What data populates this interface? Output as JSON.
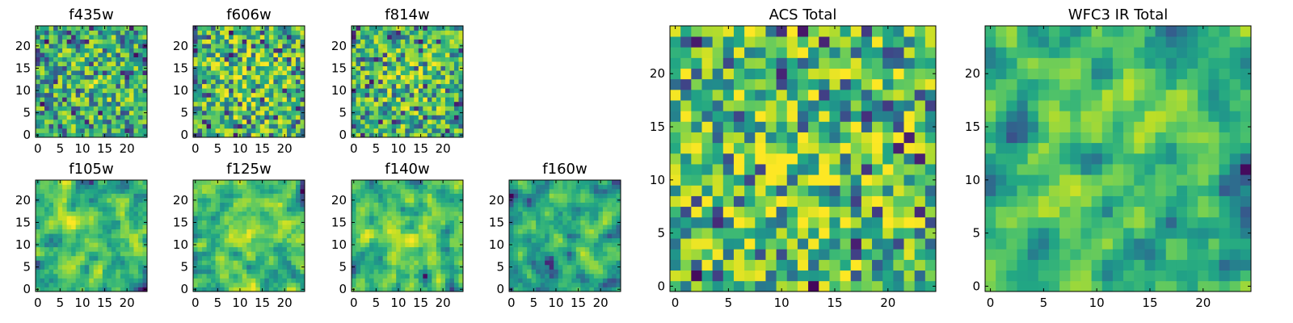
{
  "chart_data": [
    {
      "type": "heatmap",
      "title": "f435w",
      "xticks": [
        "0",
        "5",
        "10",
        "15",
        "20"
      ],
      "yticks": [
        "0",
        "5",
        "10",
        "15",
        "20"
      ],
      "xlim": [
        -0.5,
        24.5
      ],
      "ylim": [
        -0.5,
        24.5
      ],
      "colormap": "viridis",
      "seed": 11,
      "smooth": 0,
      "bias": 0.62
    },
    {
      "type": "heatmap",
      "title": "f606w",
      "xticks": [
        "0",
        "5",
        "10",
        "15",
        "20"
      ],
      "yticks": [
        "0",
        "5",
        "10",
        "15",
        "20"
      ],
      "xlim": [
        -0.5,
        24.5
      ],
      "ylim": [
        -0.5,
        24.5
      ],
      "colormap": "viridis",
      "seed": 23,
      "smooth": 0,
      "bias": 0.66
    },
    {
      "type": "heatmap",
      "title": "f814w",
      "xticks": [
        "0",
        "5",
        "10",
        "15",
        "20"
      ],
      "yticks": [
        "0",
        "5",
        "10",
        "15",
        "20"
      ],
      "xlim": [
        -0.5,
        24.5
      ],
      "ylim": [
        -0.5,
        24.5
      ],
      "colormap": "viridis",
      "seed": 37,
      "smooth": 0,
      "bias": 0.64
    },
    {
      "type": "heatmap",
      "title": "f105w",
      "xticks": [
        "0",
        "5",
        "10",
        "15",
        "20"
      ],
      "yticks": [
        "0",
        "5",
        "10",
        "15",
        "20"
      ],
      "xlim": [
        -0.5,
        24.5
      ],
      "ylim": [
        -0.5,
        24.5
      ],
      "colormap": "viridis",
      "seed": 41,
      "smooth": 1,
      "bias": 0.66
    },
    {
      "type": "heatmap",
      "title": "f125w",
      "xticks": [
        "0",
        "5",
        "10",
        "15",
        "20"
      ],
      "yticks": [
        "0",
        "5",
        "10",
        "15",
        "20"
      ],
      "xlim": [
        -0.5,
        24.5
      ],
      "ylim": [
        -0.5,
        24.5
      ],
      "colormap": "viridis",
      "seed": 53,
      "smooth": 1,
      "bias": 0.66
    },
    {
      "type": "heatmap",
      "title": "f140w",
      "xticks": [
        "0",
        "5",
        "10",
        "15",
        "20"
      ],
      "yticks": [
        "0",
        "5",
        "10",
        "15",
        "20"
      ],
      "xlim": [
        -0.5,
        24.5
      ],
      "ylim": [
        -0.5,
        24.5
      ],
      "colormap": "viridis",
      "seed": 67,
      "smooth": 1,
      "bias": 0.64
    },
    {
      "type": "heatmap",
      "title": "f160w",
      "xticks": [
        "0",
        "5",
        "10",
        "15",
        "20"
      ],
      "yticks": [
        "0",
        "5",
        "10",
        "15",
        "20"
      ],
      "xlim": [
        -0.5,
        24.5
      ],
      "ylim": [
        -0.5,
        24.5
      ],
      "colormap": "viridis",
      "seed": 79,
      "smooth": 1,
      "bias": 0.58
    },
    {
      "type": "heatmap",
      "title": "ACS Total",
      "xticks": [
        "0",
        "5",
        "10",
        "15",
        "20"
      ],
      "yticks": [
        "0",
        "5",
        "10",
        "15",
        "20"
      ],
      "xlim": [
        -0.5,
        24.5
      ],
      "ylim": [
        -0.5,
        24.5
      ],
      "colormap": "viridis",
      "seed": 97,
      "smooth": 0,
      "bias": 0.68
    },
    {
      "type": "heatmap",
      "title": "WFC3 IR Total",
      "xticks": [
        "0",
        "5",
        "10",
        "15",
        "20"
      ],
      "yticks": [
        "0",
        "5",
        "10",
        "15",
        "20"
      ],
      "xlim": [
        -0.5,
        24.5
      ],
      "ylim": [
        -0.5,
        24.5
      ],
      "colormap": "viridis",
      "seed": 113,
      "smooth": 1,
      "bias": 0.62
    }
  ]
}
